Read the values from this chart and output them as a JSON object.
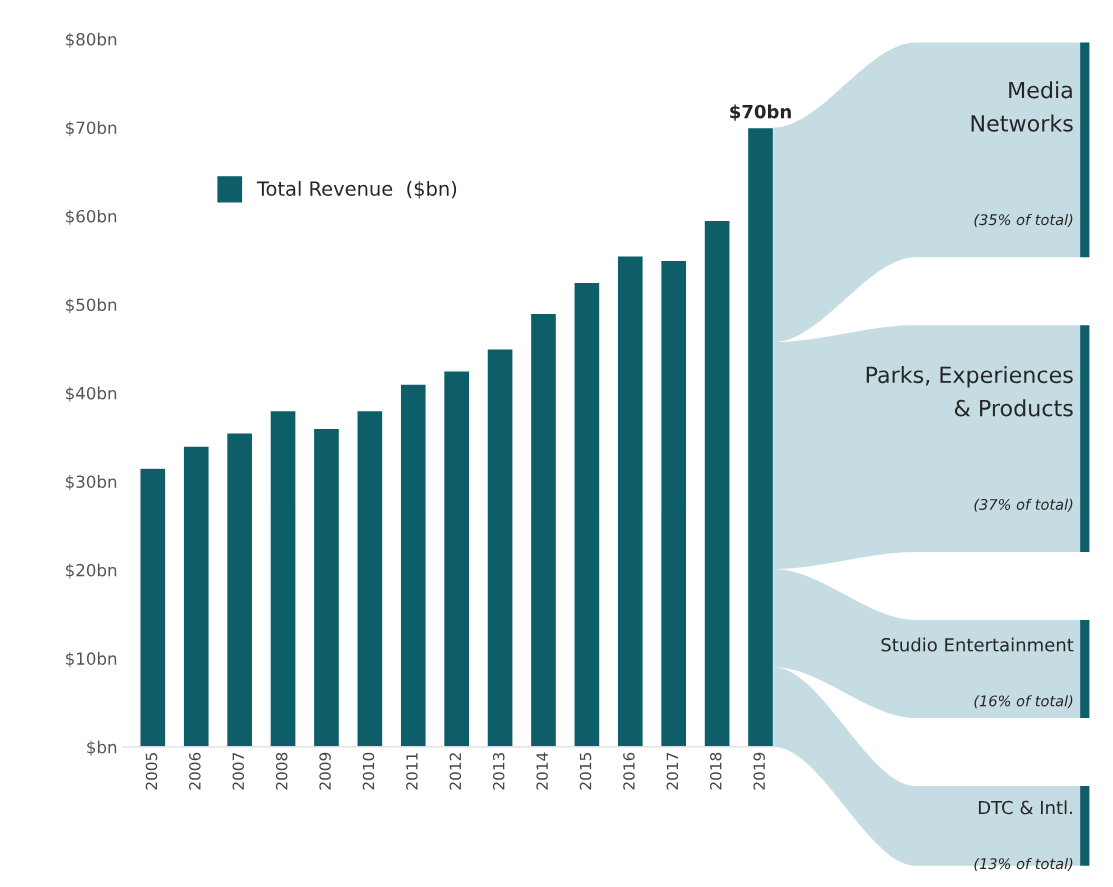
{
  "chart_data": [
    {
      "type": "bar",
      "categories": [
        "2005",
        "2006",
        "2007",
        "2008",
        "2009",
        "2010",
        "2011",
        "2012",
        "2013",
        "2014",
        "2015",
        "2016",
        "2017",
        "2018",
        "2019"
      ],
      "series": [
        {
          "name": "Total Revenue  ($bn)",
          "color": "#0d5e69",
          "values": [
            31.5,
            34,
            35.5,
            38,
            36,
            38,
            41,
            42.5,
            45,
            49,
            52.5,
            55.5,
            55,
            59.5,
            70
          ],
          "value_labels": [
            null,
            null,
            null,
            null,
            null,
            null,
            null,
            null,
            null,
            null,
            null,
            null,
            null,
            null,
            "$70bn"
          ]
        }
      ],
      "ylim": [
        0,
        80
      ],
      "yticks": [
        {
          "value": 0,
          "label": "$bn"
        },
        {
          "value": 10,
          "label": "$10bn"
        },
        {
          "value": 20,
          "label": "$20bn"
        },
        {
          "value": 30,
          "label": "$30bn"
        },
        {
          "value": 40,
          "label": "$40bn"
        },
        {
          "value": 50,
          "label": "$50bn"
        },
        {
          "value": 60,
          "label": "$60bn"
        },
        {
          "value": 70,
          "label": "$70bn"
        },
        {
          "value": 80,
          "label": "$80bn"
        }
      ],
      "grid": false,
      "legend": "top left"
    },
    {
      "type": "other",
      "categories": [
        "Media\nNetworks",
        "Parks, Experiences\n& Products",
        "Studio Entertainment",
        "DTC & Intl."
      ],
      "values": [
        35,
        37,
        16,
        13
      ],
      "value_labels": [
        "(35% of total)",
        "(37% of total)",
        "(16% of total)",
        "(13% of total)"
      ],
      "colors": [
        "#c4dce2",
        "#c4dce2",
        "#c4dce2",
        "#c4dce2"
      ]
    }
  ]
}
